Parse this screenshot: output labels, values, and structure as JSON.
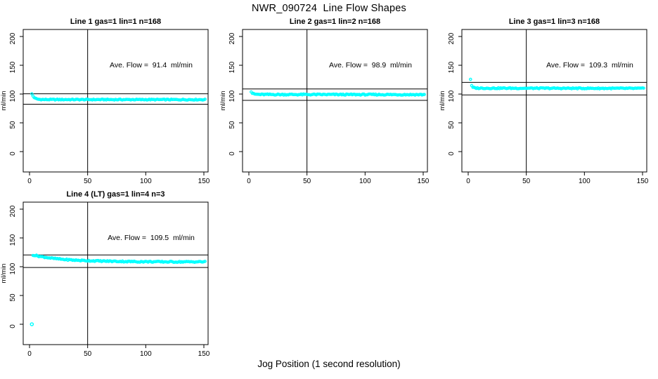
{
  "figure": {
    "main_title": "NWR_090724  Line Flow Shapes",
    "x_axis_label": "Jog Position (1 second resolution)",
    "y_axis_label": "ml/min",
    "background_color": "#ffffff",
    "point_color": "#00ffff",
    "line_color": "#000000"
  },
  "chart_data": [
    {
      "type": "scatter",
      "title": "Line 1 gas=1 lin=1 n=168",
      "annotation": "Ave. Flow =  91.4  ml/min",
      "ave_flow_ml_min": 91.4,
      "n": 168,
      "x_ticks": [
        0,
        50,
        100,
        150
      ],
      "y_ticks": [
        0,
        50,
        100,
        150,
        200
      ],
      "xlim": [
        -5.5,
        154
      ],
      "ylim": [
        -35,
        212
      ],
      "vline_x": 50,
      "hlines": [
        100.5,
        82.3
      ],
      "grid": false,
      "series": {
        "name": "flow",
        "x_start": 2,
        "x_end": 151,
        "x_step": 1,
        "profile_points": [
          [
            2,
            100.3
          ],
          [
            3,
            96.5
          ],
          [
            4,
            94.0
          ],
          [
            5,
            92.5
          ],
          [
            6,
            91.6
          ],
          [
            8,
            90.8
          ],
          [
            12,
            90.4
          ],
          [
            151,
            90.3
          ]
        ],
        "noise_amp": 0.8
      },
      "outlier_points": []
    },
    {
      "type": "scatter",
      "title": "Line 2 gas=1 lin=2 n=168",
      "annotation": "Ave. Flow =  98.9  ml/min",
      "ave_flow_ml_min": 98.9,
      "n": 168,
      "x_ticks": [
        0,
        50,
        100,
        150
      ],
      "y_ticks": [
        0,
        50,
        100,
        150,
        200
      ],
      "xlim": [
        -5.5,
        154
      ],
      "ylim": [
        -35,
        212
      ],
      "vline_x": 50,
      "hlines": [
        108.8,
        89.0
      ],
      "grid": false,
      "series": {
        "name": "flow",
        "x_start": 2,
        "x_end": 151,
        "x_step": 1,
        "profile_points": [
          [
            2,
            104.0
          ],
          [
            3,
            101.5
          ],
          [
            4,
            100.3
          ],
          [
            6,
            99.6
          ],
          [
            10,
            99.2
          ],
          [
            151,
            99.0
          ]
        ],
        "noise_amp": 1.0
      },
      "outlier_points": []
    },
    {
      "type": "scatter",
      "title": "Line 3 gas=1 lin=3 n=168",
      "annotation": "Ave. Flow =  109.3  ml/min",
      "ave_flow_ml_min": 109.3,
      "n": 168,
      "x_ticks": [
        0,
        50,
        100,
        150
      ],
      "y_ticks": [
        0,
        50,
        100,
        150,
        200
      ],
      "xlim": [
        -5.5,
        154
      ],
      "ylim": [
        -35,
        212
      ],
      "vline_x": 50,
      "hlines": [
        120.2,
        98.4
      ],
      "grid": false,
      "series": {
        "name": "flow",
        "x_start": 2,
        "x_end": 151,
        "x_step": 1,
        "profile_points": [
          [
            2,
            126.0
          ],
          [
            3,
            114.0
          ],
          [
            4,
            111.5
          ],
          [
            6,
            110.5
          ],
          [
            10,
            110.2
          ],
          [
            151,
            109.8
          ]
        ],
        "noise_amp": 0.9
      },
      "outlier_points": []
    },
    {
      "type": "scatter",
      "title": "Line 4 (LT) gas=1 lin=4 n=3",
      "annotation": "Ave. Flow =  109.5  ml/min",
      "ave_flow_ml_min": 109.5,
      "n": 3,
      "x_ticks": [
        0,
        50,
        100,
        150
      ],
      "y_ticks": [
        0,
        50,
        100,
        150,
        200
      ],
      "xlim": [
        -5.5,
        154
      ],
      "ylim": [
        -35,
        212
      ],
      "vline_x": 50,
      "hlines": [
        120.5,
        98.6
      ],
      "grid": false,
      "series": {
        "name": "flow",
        "x_start": 3,
        "x_end": 151,
        "x_step": 1,
        "profile_points": [
          [
            3,
            120.5
          ],
          [
            5,
            119.5
          ],
          [
            10,
            117.5
          ],
          [
            20,
            114.5
          ],
          [
            30,
            112.5
          ],
          [
            40,
            111.2
          ],
          [
            60,
            109.8
          ],
          [
            90,
            108.8
          ],
          [
            120,
            108.4
          ],
          [
            151,
            108.5
          ]
        ],
        "noise_amp": 1.0
      },
      "outlier_points": [
        [
          2,
          0
        ]
      ]
    }
  ]
}
